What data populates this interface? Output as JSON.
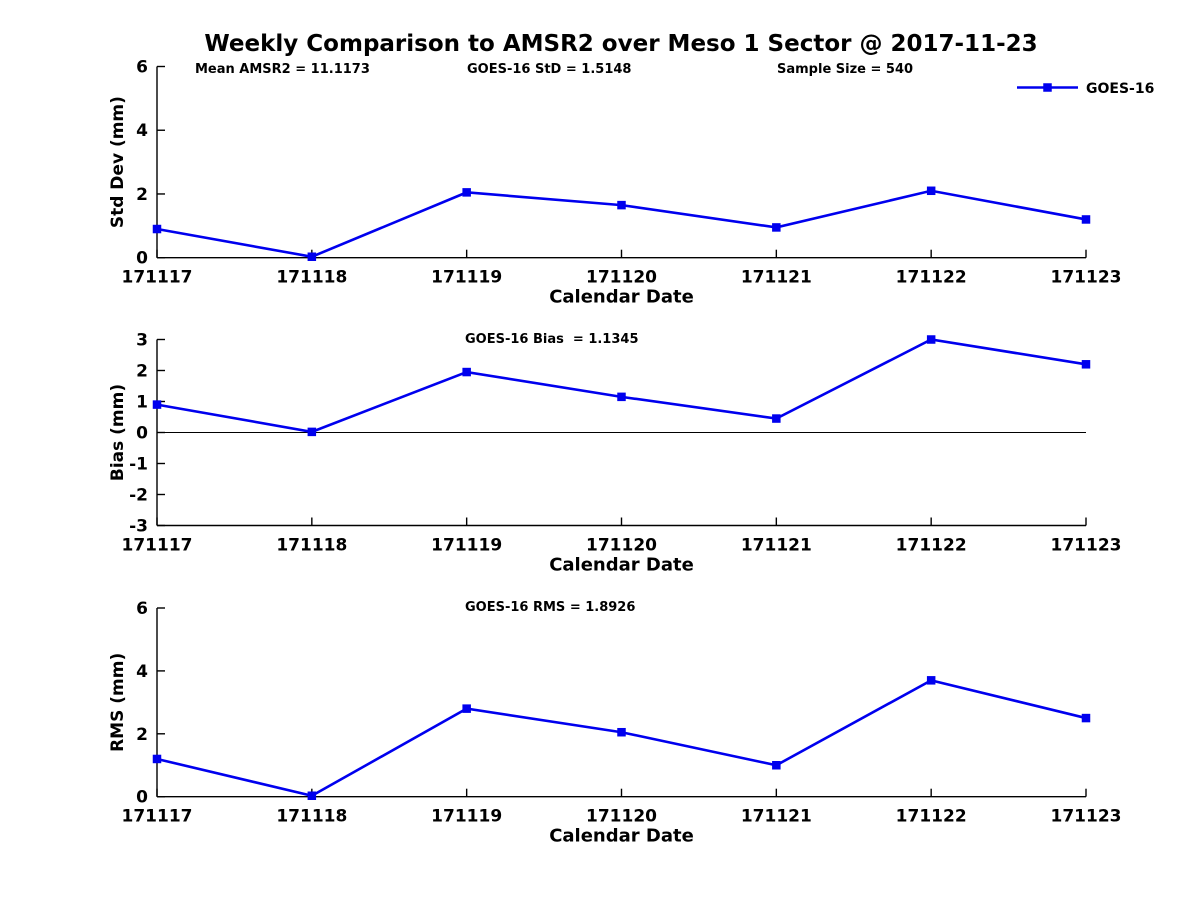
{
  "figure": {
    "title": "Weekly Comparison to AMSR2 over Meso 1 Sector @ 2017-11-23",
    "background": "#ffffff",
    "axis_color": "#000000",
    "text_color": "#000000"
  },
  "legend": {
    "label": "GOES-16",
    "color": "#0000ee",
    "marker": "square",
    "position": "top-right"
  },
  "chart_data": [
    {
      "id": "stddev",
      "type": "line",
      "xlabel": "Calendar Date",
      "ylabel": "Std Dev (mm)",
      "ylim": [
        0,
        6
      ],
      "yticks": [
        0,
        2,
        4,
        6
      ],
      "categories": [
        "171117",
        "171118",
        "171119",
        "171120",
        "171121",
        "171122",
        "171123"
      ],
      "series": [
        {
          "name": "GOES-16",
          "color": "#0000ee",
          "marker": "square",
          "values": [
            0.9,
            0.03,
            2.05,
            1.65,
            0.95,
            2.1,
            1.2
          ]
        }
      ],
      "annotations": [
        "Mean AMSR2 = 11.1173",
        "GOES-16 StD = 1.5148",
        "Sample Size = 540"
      ],
      "zero_line": false,
      "legend_visible": true,
      "grid": false
    },
    {
      "id": "bias",
      "type": "line",
      "xlabel": "Calendar Date",
      "ylabel": "Bias (mm)",
      "ylim": [
        -3,
        3
      ],
      "yticks": [
        -3,
        -2,
        -1,
        0,
        1,
        2,
        3
      ],
      "categories": [
        "171117",
        "171118",
        "171119",
        "171120",
        "171121",
        "171122",
        "171123"
      ],
      "series": [
        {
          "name": "GOES-16",
          "color": "#0000ee",
          "marker": "square",
          "values": [
            0.9,
            0.02,
            1.95,
            1.15,
            0.45,
            3.0,
            2.2
          ]
        }
      ],
      "annotations": [
        "GOES-16 Bias  = 1.1345"
      ],
      "zero_line": true,
      "legend_visible": false,
      "grid": false
    },
    {
      "id": "rms",
      "type": "line",
      "xlabel": "Calendar Date",
      "ylabel": "RMS (mm)",
      "ylim": [
        0,
        6
      ],
      "yticks": [
        0,
        2,
        4,
        6
      ],
      "categories": [
        "171117",
        "171118",
        "171119",
        "171120",
        "171121",
        "171122",
        "171123"
      ],
      "series": [
        {
          "name": "GOES-16",
          "color": "#0000ee",
          "marker": "square",
          "values": [
            1.2,
            0.03,
            2.8,
            2.05,
            1.0,
            3.7,
            2.5
          ]
        }
      ],
      "annotations": [
        "GOES-16 RMS = 1.8926"
      ],
      "zero_line": false,
      "legend_visible": false,
      "grid": false
    }
  ]
}
